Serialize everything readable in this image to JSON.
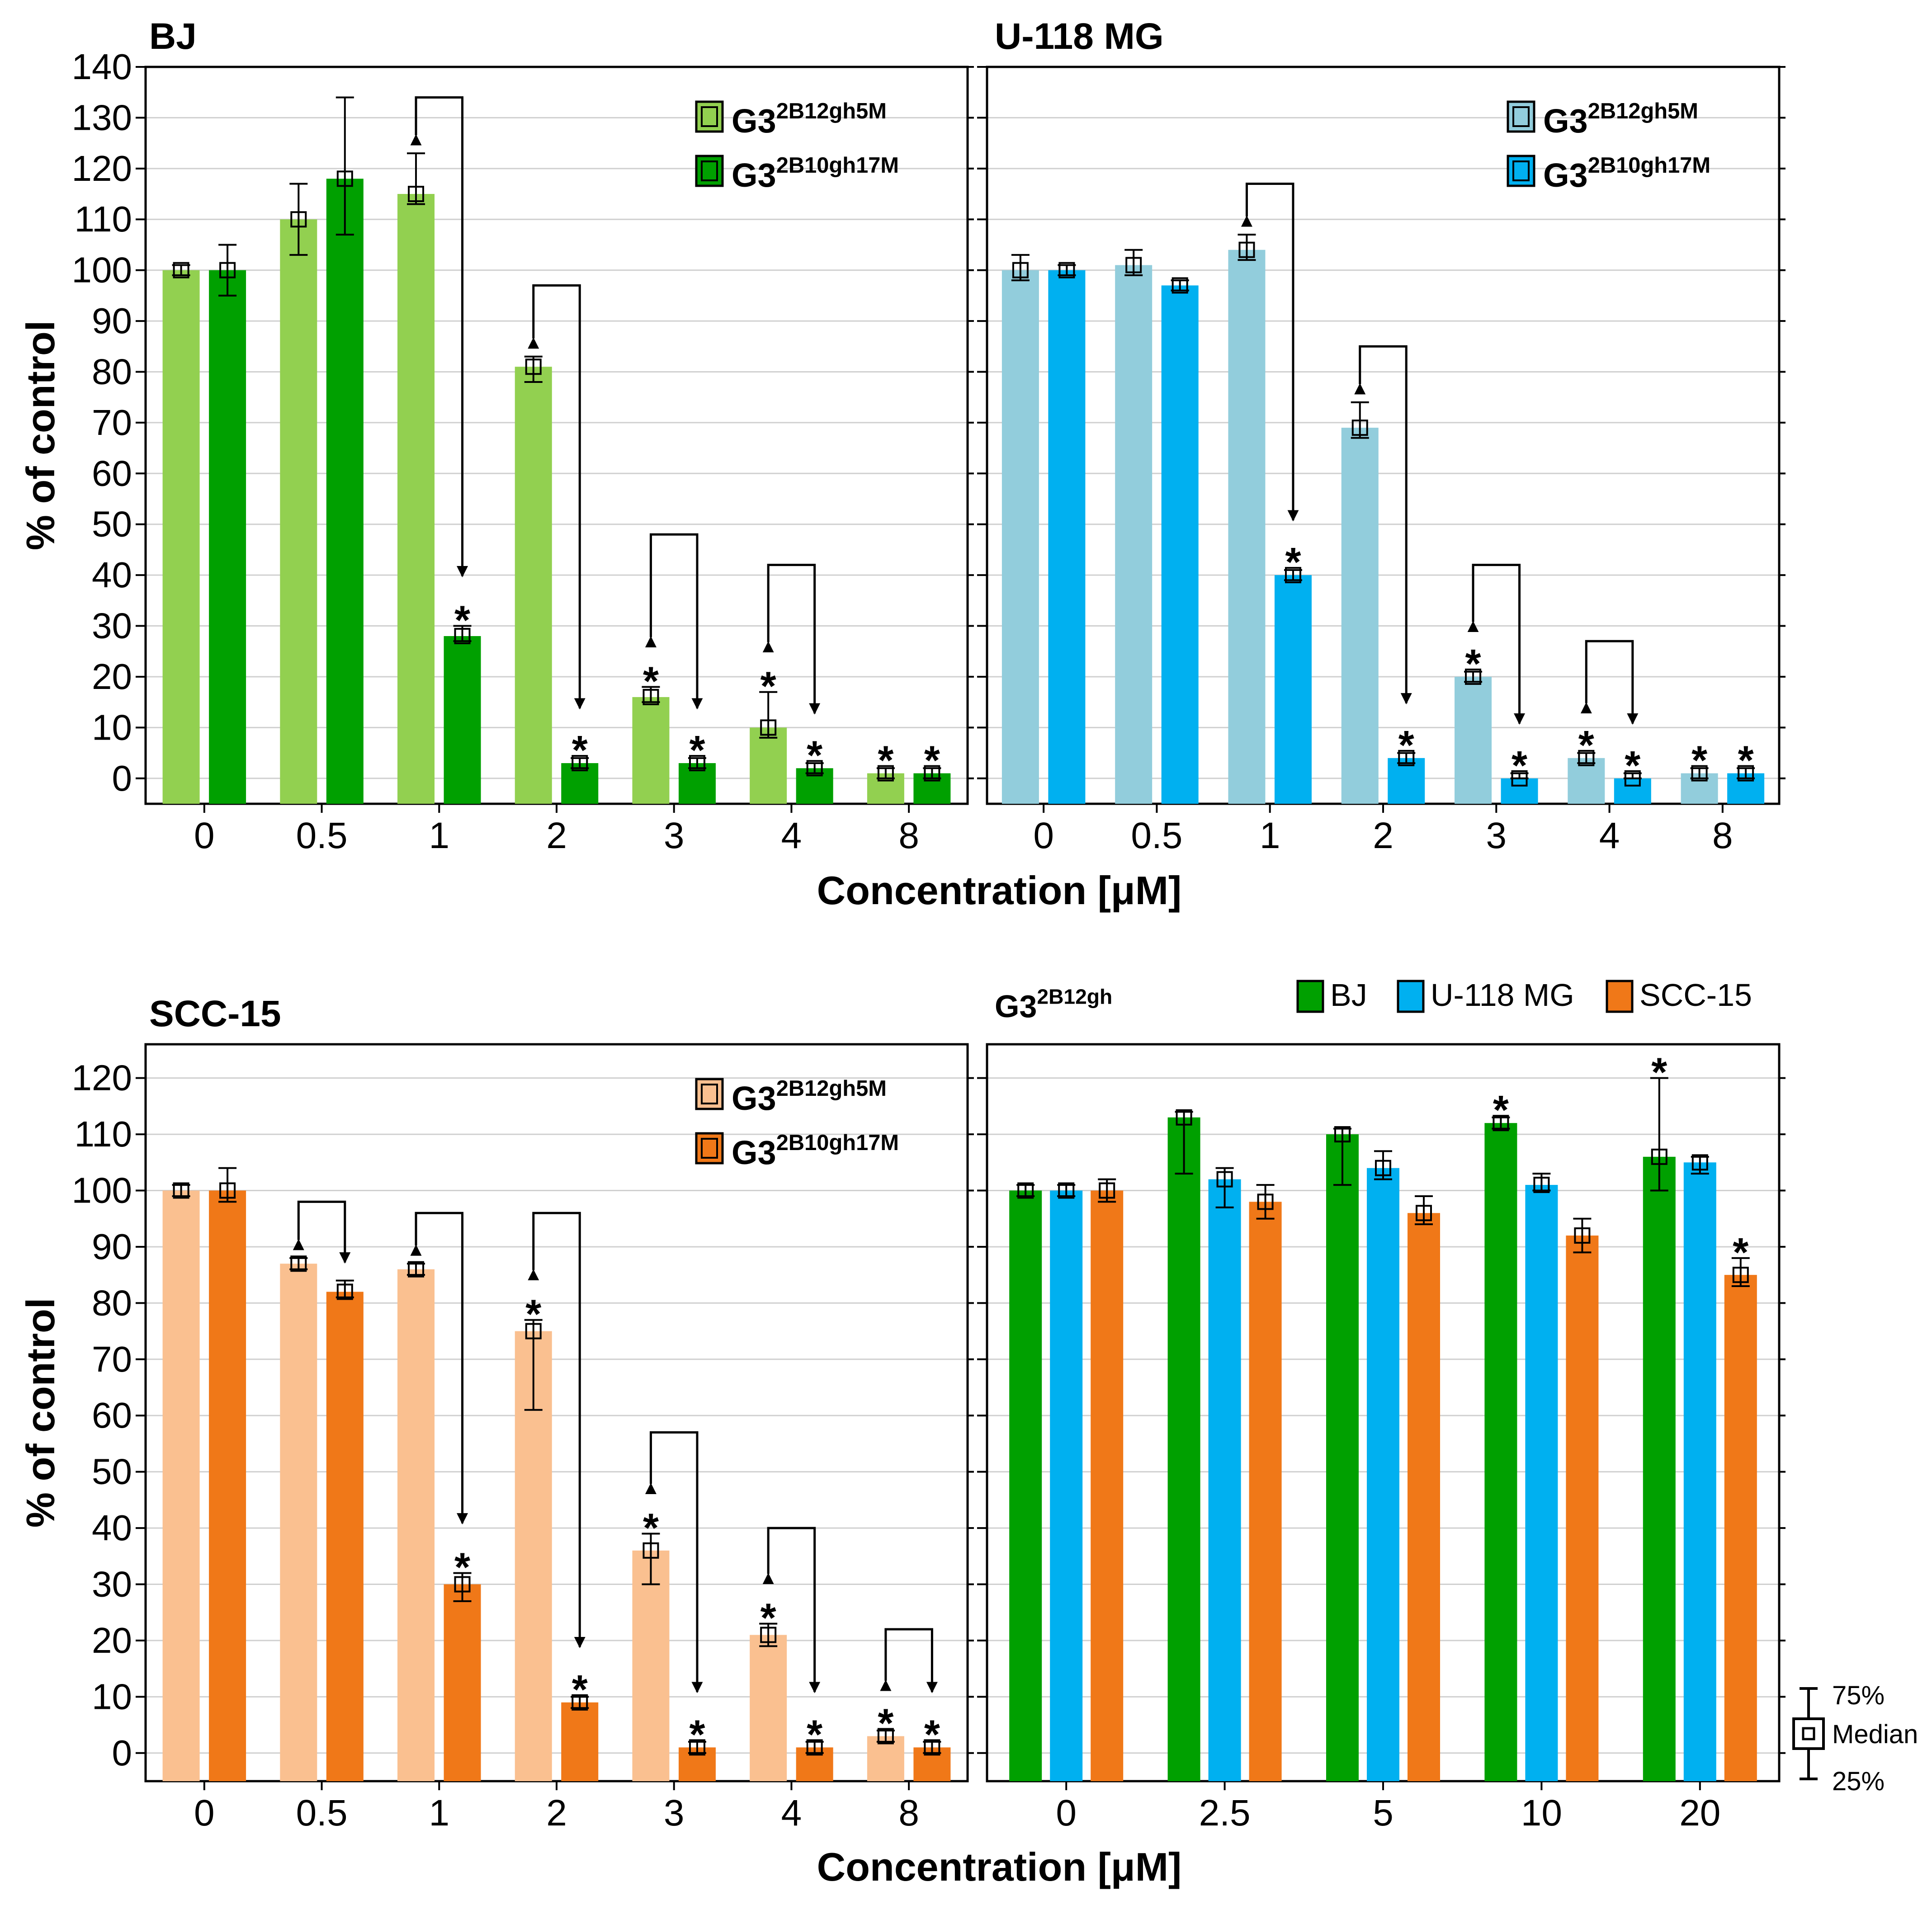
{
  "figure": {
    "xlabel": "Concentration [μM]",
    "ylabel": "% of control",
    "key": {
      "upper": "75%",
      "middle": "Median",
      "lower": "25%"
    }
  },
  "chart_data": [
    {
      "id": "bj",
      "type": "bar",
      "title": "BJ",
      "xlabel": "",
      "ylabel": "% of control",
      "ylim": [
        -5,
        140
      ],
      "yticks": [
        0,
        10,
        20,
        30,
        40,
        50,
        60,
        70,
        80,
        90,
        100,
        110,
        120,
        130,
        140
      ],
      "categories": [
        "0",
        "0.5",
        "1",
        "2",
        "3",
        "4",
        "8"
      ],
      "legend_position": "top-right",
      "series": [
        {
          "name_base": "G3",
          "name_sup": "2B12gh5M",
          "color": "#92d050",
          "values": [
            100,
            110,
            115,
            81,
            16,
            10,
            1
          ],
          "err_low": [
            99,
            103,
            113,
            78,
            15,
            8,
            0
          ],
          "err_high": [
            101,
            117,
            123,
            83,
            18,
            17,
            2
          ],
          "significant": [
            false,
            false,
            false,
            false,
            true,
            true,
            true
          ]
        },
        {
          "name_base": "G3",
          "name_sup": "2B10gh17M",
          "color": "#00a000",
          "values": [
            100,
            118,
            28,
            3,
            3,
            2,
            1
          ],
          "err_low": [
            95,
            107,
            27,
            2,
            2,
            1,
            0
          ],
          "err_high": [
            105,
            134,
            30,
            4,
            4,
            3,
            2
          ],
          "significant": [
            false,
            false,
            true,
            true,
            true,
            true,
            true
          ]
        }
      ],
      "brackets": [
        {
          "category_index": 2,
          "top": 134
        },
        {
          "category_index": 3,
          "top": 97
        },
        {
          "category_index": 4,
          "top": 48
        },
        {
          "category_index": 5,
          "top": 42
        }
      ]
    },
    {
      "id": "u118",
      "type": "bar",
      "title": "U-118 MG",
      "xlabel": "",
      "ylabel": "",
      "ylim": [
        -5,
        140
      ],
      "yticks": [
        0,
        10,
        20,
        30,
        40,
        50,
        60,
        70,
        80,
        90,
        100,
        110,
        120,
        130,
        140
      ],
      "categories": [
        "0",
        "0.5",
        "1",
        "2",
        "3",
        "4",
        "8"
      ],
      "legend_position": "top-right",
      "series": [
        {
          "name_base": "G3",
          "name_sup": "2B12gh5M",
          "color": "#92cddc",
          "values": [
            100,
            101,
            104,
            69,
            20,
            4,
            1
          ],
          "err_low": [
            98,
            99,
            102,
            67,
            19,
            3,
            0
          ],
          "err_high": [
            103,
            104,
            107,
            74,
            21,
            5,
            2
          ],
          "significant": [
            false,
            false,
            false,
            false,
            true,
            true,
            true
          ]
        },
        {
          "name_base": "G3",
          "name_sup": "2B10gh17M",
          "color": "#00b0f0",
          "values": [
            100,
            97,
            40,
            4,
            0,
            0,
            1
          ],
          "err_low": [
            99,
            96,
            39,
            3,
            0,
            0,
            0
          ],
          "err_high": [
            101,
            98,
            41,
            5,
            1,
            1,
            2
          ],
          "significant": [
            false,
            false,
            true,
            true,
            true,
            true,
            true
          ]
        }
      ],
      "brackets": [
        {
          "category_index": 2,
          "top": 117
        },
        {
          "category_index": 3,
          "top": 85
        },
        {
          "category_index": 4,
          "top": 42
        },
        {
          "category_index": 5,
          "top": 27
        }
      ]
    },
    {
      "id": "scc15",
      "type": "bar",
      "title": "SCC-15",
      "xlabel": "",
      "ylabel": "% of control",
      "ylim": [
        -5,
        126
      ],
      "yticks": [
        0,
        10,
        20,
        30,
        40,
        50,
        60,
        70,
        80,
        90,
        100,
        110,
        120
      ],
      "categories": [
        "0",
        "0.5",
        "1",
        "2",
        "3",
        "4",
        "8"
      ],
      "legend_position": "top-right",
      "series": [
        {
          "name_base": "G3",
          "name_sup": "2B12gh5M",
          "color": "#fac090",
          "values": [
            100,
            87,
            86,
            75,
            36,
            21,
            3
          ],
          "err_low": [
            99,
            86,
            85,
            61,
            30,
            19,
            2
          ],
          "err_high": [
            101,
            88,
            87,
            77,
            39,
            23,
            4
          ],
          "significant": [
            false,
            false,
            false,
            true,
            true,
            true,
            true
          ]
        },
        {
          "name_base": "G3",
          "name_sup": "2B10gh17M",
          "color": "#f07818",
          "values": [
            100,
            82,
            30,
            9,
            1,
            1,
            1
          ],
          "err_low": [
            98,
            81,
            27,
            8,
            0,
            0,
            0
          ],
          "err_high": [
            104,
            84,
            32,
            10,
            2,
            2,
            2
          ],
          "significant": [
            false,
            false,
            true,
            true,
            true,
            true,
            true
          ]
        }
      ],
      "brackets": [
        {
          "category_index": 1,
          "top": 98
        },
        {
          "category_index": 2,
          "top": 96
        },
        {
          "category_index": 3,
          "top": 96
        },
        {
          "category_index": 4,
          "top": 57
        },
        {
          "category_index": 5,
          "top": 40
        },
        {
          "category_index": 6,
          "top": 22
        }
      ]
    },
    {
      "id": "g3gh",
      "type": "bar",
      "title_base": "G3",
      "title_sup": "2B12gh",
      "xlabel": "",
      "ylabel": "",
      "ylim": [
        -5,
        126
      ],
      "yticks": [
        0,
        10,
        20,
        30,
        40,
        50,
        60,
        70,
        80,
        90,
        100,
        110,
        120
      ],
      "categories": [
        "0",
        "2.5",
        "5",
        "10",
        "20"
      ],
      "legend_position": "top-right-outside",
      "series": [
        {
          "name": "BJ",
          "color": "#00a000",
          "values": [
            100,
            113,
            110,
            112,
            106
          ],
          "err_low": [
            99,
            103,
            101,
            111,
            100
          ],
          "err_high": [
            101,
            114,
            111,
            113,
            120
          ],
          "significant": [
            false,
            false,
            false,
            true,
            true
          ]
        },
        {
          "name": "U-118 MG",
          "color": "#00b0f0",
          "values": [
            100,
            102,
            104,
            101,
            105
          ],
          "err_low": [
            99,
            97,
            102,
            100,
            103
          ],
          "err_high": [
            101,
            104,
            107,
            103,
            106
          ],
          "significant": [
            false,
            false,
            false,
            false,
            false
          ]
        },
        {
          "name": "SCC-15",
          "color": "#f07818",
          "values": [
            100,
            98,
            96,
            92,
            85
          ],
          "err_low": [
            98,
            95,
            94,
            89,
            83
          ],
          "err_high": [
            102,
            101,
            99,
            95,
            88
          ],
          "significant": [
            false,
            false,
            false,
            false,
            true
          ]
        }
      ],
      "brackets": []
    }
  ]
}
